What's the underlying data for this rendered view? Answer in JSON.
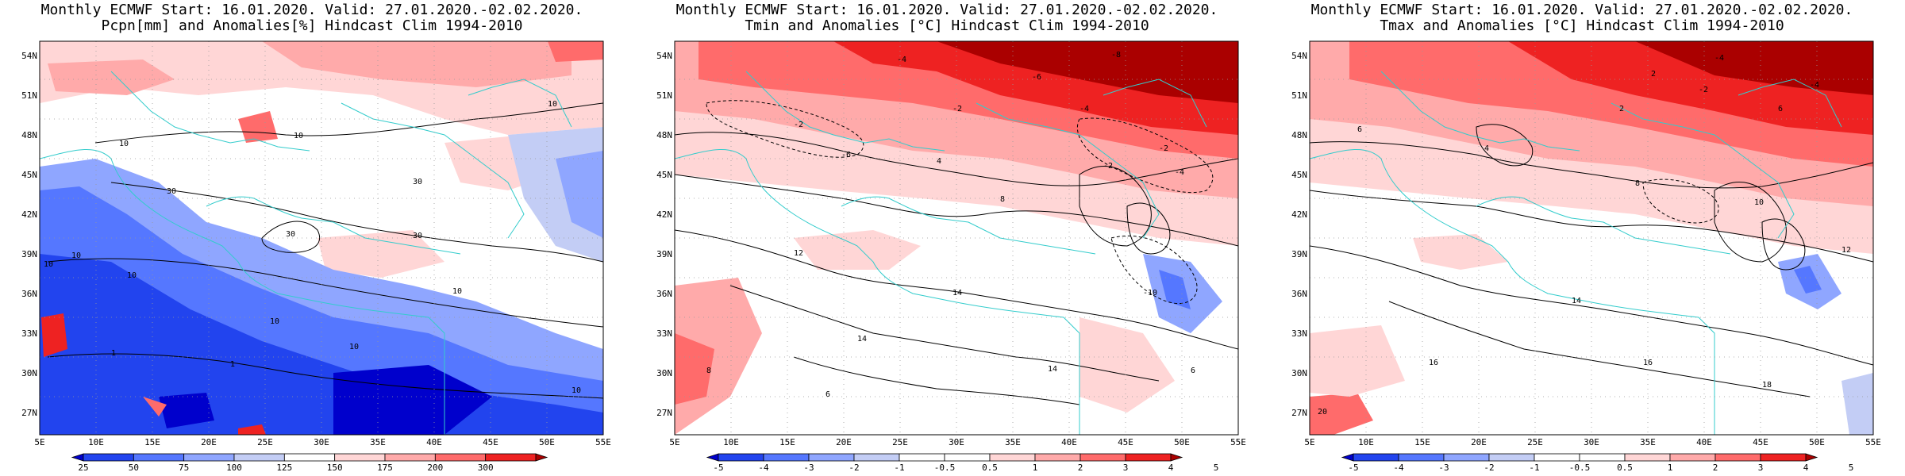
{
  "panels": [
    {
      "title_line1": "Monthly ECMWF Start: 16.01.2020. Valid: 27.01.2020.-02.02.2020.",
      "title_line2": "Pcpn[mm] and Anomalies[%] Hindcast Clim 1994-2010",
      "colorbar": {
        "colors": [
          "#0000cc",
          "#2244ee",
          "#5577ff",
          "#8fa6ff",
          "#c3cdf5",
          "#ffffff",
          "#ffd6d6",
          "#ffaaaa",
          "#ff6b6b",
          "#ee2222",
          "#aa0000"
        ],
        "labels": [
          "25",
          "50",
          "75",
          "100",
          "125",
          "150",
          "175",
          "200",
          "300"
        ]
      },
      "contour_labels": [
        "10",
        "30",
        "10",
        "30",
        "30",
        "30",
        "10",
        "10",
        "10",
        "10",
        "10",
        "10",
        "1",
        "1",
        "10",
        "10"
      ]
    },
    {
      "title_line1": "Monthly ECMWF Start: 16.01.2020. Valid: 27.01.2020.-02.02.2020.",
      "title_line2": "Tmin and Anomalies [°C] Hindcast Clim 1994-2010",
      "colorbar": {
        "colors": [
          "#0000cc",
          "#2244ee",
          "#5577ff",
          "#8fa6ff",
          "#c3cdf5",
          "#ffffff",
          "#ffffff",
          "#ffd6d6",
          "#ffaaaa",
          "#ff6b6b",
          "#ee2222",
          "#aa0000"
        ],
        "labels": [
          "-5",
          "-4",
          "-3",
          "-2",
          "-1",
          "-0.5",
          "0.5",
          "1",
          "2",
          "3",
          "4",
          "5"
        ]
      },
      "contour_labels": [
        "-4",
        "-8",
        "-6",
        "-2",
        "-4",
        "-2",
        "-6",
        "-2",
        "-4",
        "4",
        "-2",
        "8",
        "12",
        "14",
        "14",
        "-10",
        "14",
        "8",
        "6",
        "6"
      ]
    },
    {
      "title_line1": "Monthly ECMWF Start: 16.01.2020. Valid: 27.01.2020.-02.02.2020.",
      "title_line2": "Tmax and Anomalies [°C] Hindcast Clim 1994-2010",
      "colorbar": {
        "colors": [
          "#0000cc",
          "#2244ee",
          "#5577ff",
          "#8fa6ff",
          "#c3cdf5",
          "#ffffff",
          "#ffffff",
          "#ffd6d6",
          "#ffaaaa",
          "#ff6b6b",
          "#ee2222",
          "#aa0000"
        ],
        "labels": [
          "-5",
          "-4",
          "-3",
          "-2",
          "-1",
          "-0.5",
          "0.5",
          "1",
          "2",
          "3",
          "4",
          "5"
        ]
      },
      "contour_labels": [
        "-4",
        "2",
        "-2",
        "-4",
        "2",
        "6",
        "4",
        "8",
        "10",
        "12",
        "14",
        "16",
        "18",
        "20",
        "16",
        "6"
      ]
    }
  ],
  "latitudes": [
    "54N",
    "51N",
    "48N",
    "45N",
    "42N",
    "39N",
    "36N",
    "33N",
    "30N",
    "27N"
  ],
  "longitudes": [
    "5E",
    "10E",
    "15E",
    "20E",
    "25E",
    "30E",
    "35E",
    "40E",
    "45E",
    "50E",
    "55E"
  ]
}
